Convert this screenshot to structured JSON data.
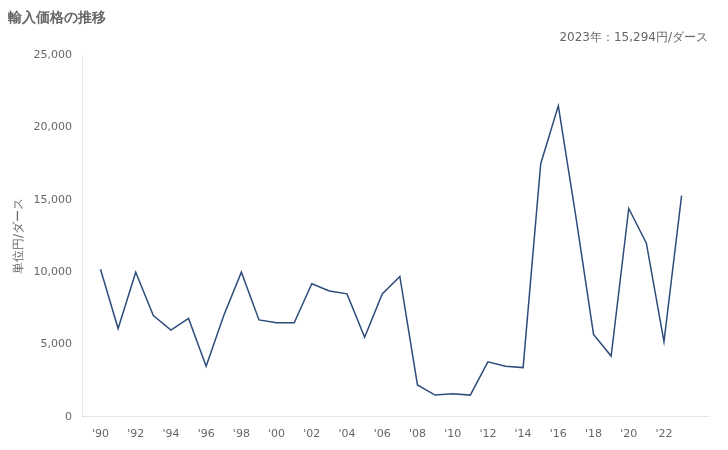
{
  "chart_data": {
    "type": "line",
    "title": "輸入価格の推移",
    "ylabel": "単位円/ダース",
    "annotation": "2023年：15,294円/ダース",
    "x": [
      1990,
      1991,
      1992,
      1993,
      1994,
      1995,
      1996,
      1997,
      1998,
      1999,
      2000,
      2001,
      2002,
      2003,
      2004,
      2005,
      2006,
      2007,
      2008,
      2009,
      2010,
      2011,
      2012,
      2013,
      2014,
      2015,
      2016,
      2017,
      2018,
      2019,
      2020,
      2021,
      2022,
      2023
    ],
    "values": [
      10200,
      6100,
      10000,
      7000,
      6000,
      6800,
      3500,
      7000,
      10000,
      6700,
      6500,
      6500,
      9200,
      8700,
      8500,
      5500,
      8500,
      9700,
      2200,
      1500,
      1600,
      1500,
      3800,
      3500,
      3400,
      17500,
      21500,
      13800,
      5700,
      4200,
      14400,
      12000,
      5200,
      15294
    ],
    "color": "#2e4d7b",
    "marker": "none",
    "grid": false,
    "xlim": [
      1989,
      2024.5
    ],
    "xticks": [
      {
        "value": 1990,
        "label": "'90"
      },
      {
        "value": 1992,
        "label": "'92"
      },
      {
        "value": 1994,
        "label": "'94"
      },
      {
        "value": 1996,
        "label": "'96"
      },
      {
        "value": 1998,
        "label": "'98"
      },
      {
        "value": 2000,
        "label": "'00"
      },
      {
        "value": 2002,
        "label": "'02"
      },
      {
        "value": 2004,
        "label": "'04"
      },
      {
        "value": 2006,
        "label": "'06"
      },
      {
        "value": 2008,
        "label": "'08"
      },
      {
        "value": 2010,
        "label": "'10"
      },
      {
        "value": 2012,
        "label": "'12"
      },
      {
        "value": 2014,
        "label": "'14"
      },
      {
        "value": 2016,
        "label": "'16"
      },
      {
        "value": 2018,
        "label": "'18"
      },
      {
        "value": 2020,
        "label": "'20"
      },
      {
        "value": 2022,
        "label": "'22"
      }
    ],
    "ylim": [
      0,
      25000
    ],
    "yticks": [
      0,
      {
        "value": 5000,
        "label": "5,000"
      },
      {
        "value": 10000,
        "label": "10,000"
      },
      {
        "value": 15000,
        "label": "15,000"
      },
      {
        "value": 20000,
        "label": "20,000"
      },
      {
        "value": 25000,
        "label": "25,000"
      }
    ]
  }
}
